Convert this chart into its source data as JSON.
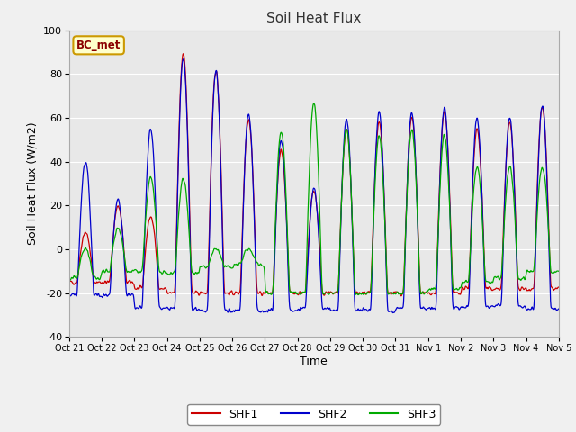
{
  "title": "Soil Heat Flux",
  "xlabel": "Time",
  "ylabel": "Soil Heat Flux (W/m2)",
  "ylim": [
    -40,
    100
  ],
  "xlim": [
    0,
    15
  ],
  "annotation": "BC_met",
  "bg_color": "#f0f0f0",
  "plot_bg": "#e8e8e8",
  "grid_color": "white",
  "shf1_color": "#cc0000",
  "shf2_color": "#0000cc",
  "shf3_color": "#00aa00",
  "legend_labels": [
    "SHF1",
    "SHF2",
    "SHF3"
  ],
  "xtick_labels": [
    "Oct 21",
    "Oct 22",
    "Oct 23",
    "Oct 24",
    "Oct 25",
    "Oct 26",
    "Oct 27",
    "Oct 28",
    "Oct 29",
    "Oct 30",
    "Oct 31",
    "Nov 1",
    "Nov 2",
    "Nov 3",
    "Nov 4",
    "Nov 5"
  ],
  "ytick_values": [
    -40,
    -20,
    0,
    20,
    40,
    60,
    80,
    100
  ]
}
